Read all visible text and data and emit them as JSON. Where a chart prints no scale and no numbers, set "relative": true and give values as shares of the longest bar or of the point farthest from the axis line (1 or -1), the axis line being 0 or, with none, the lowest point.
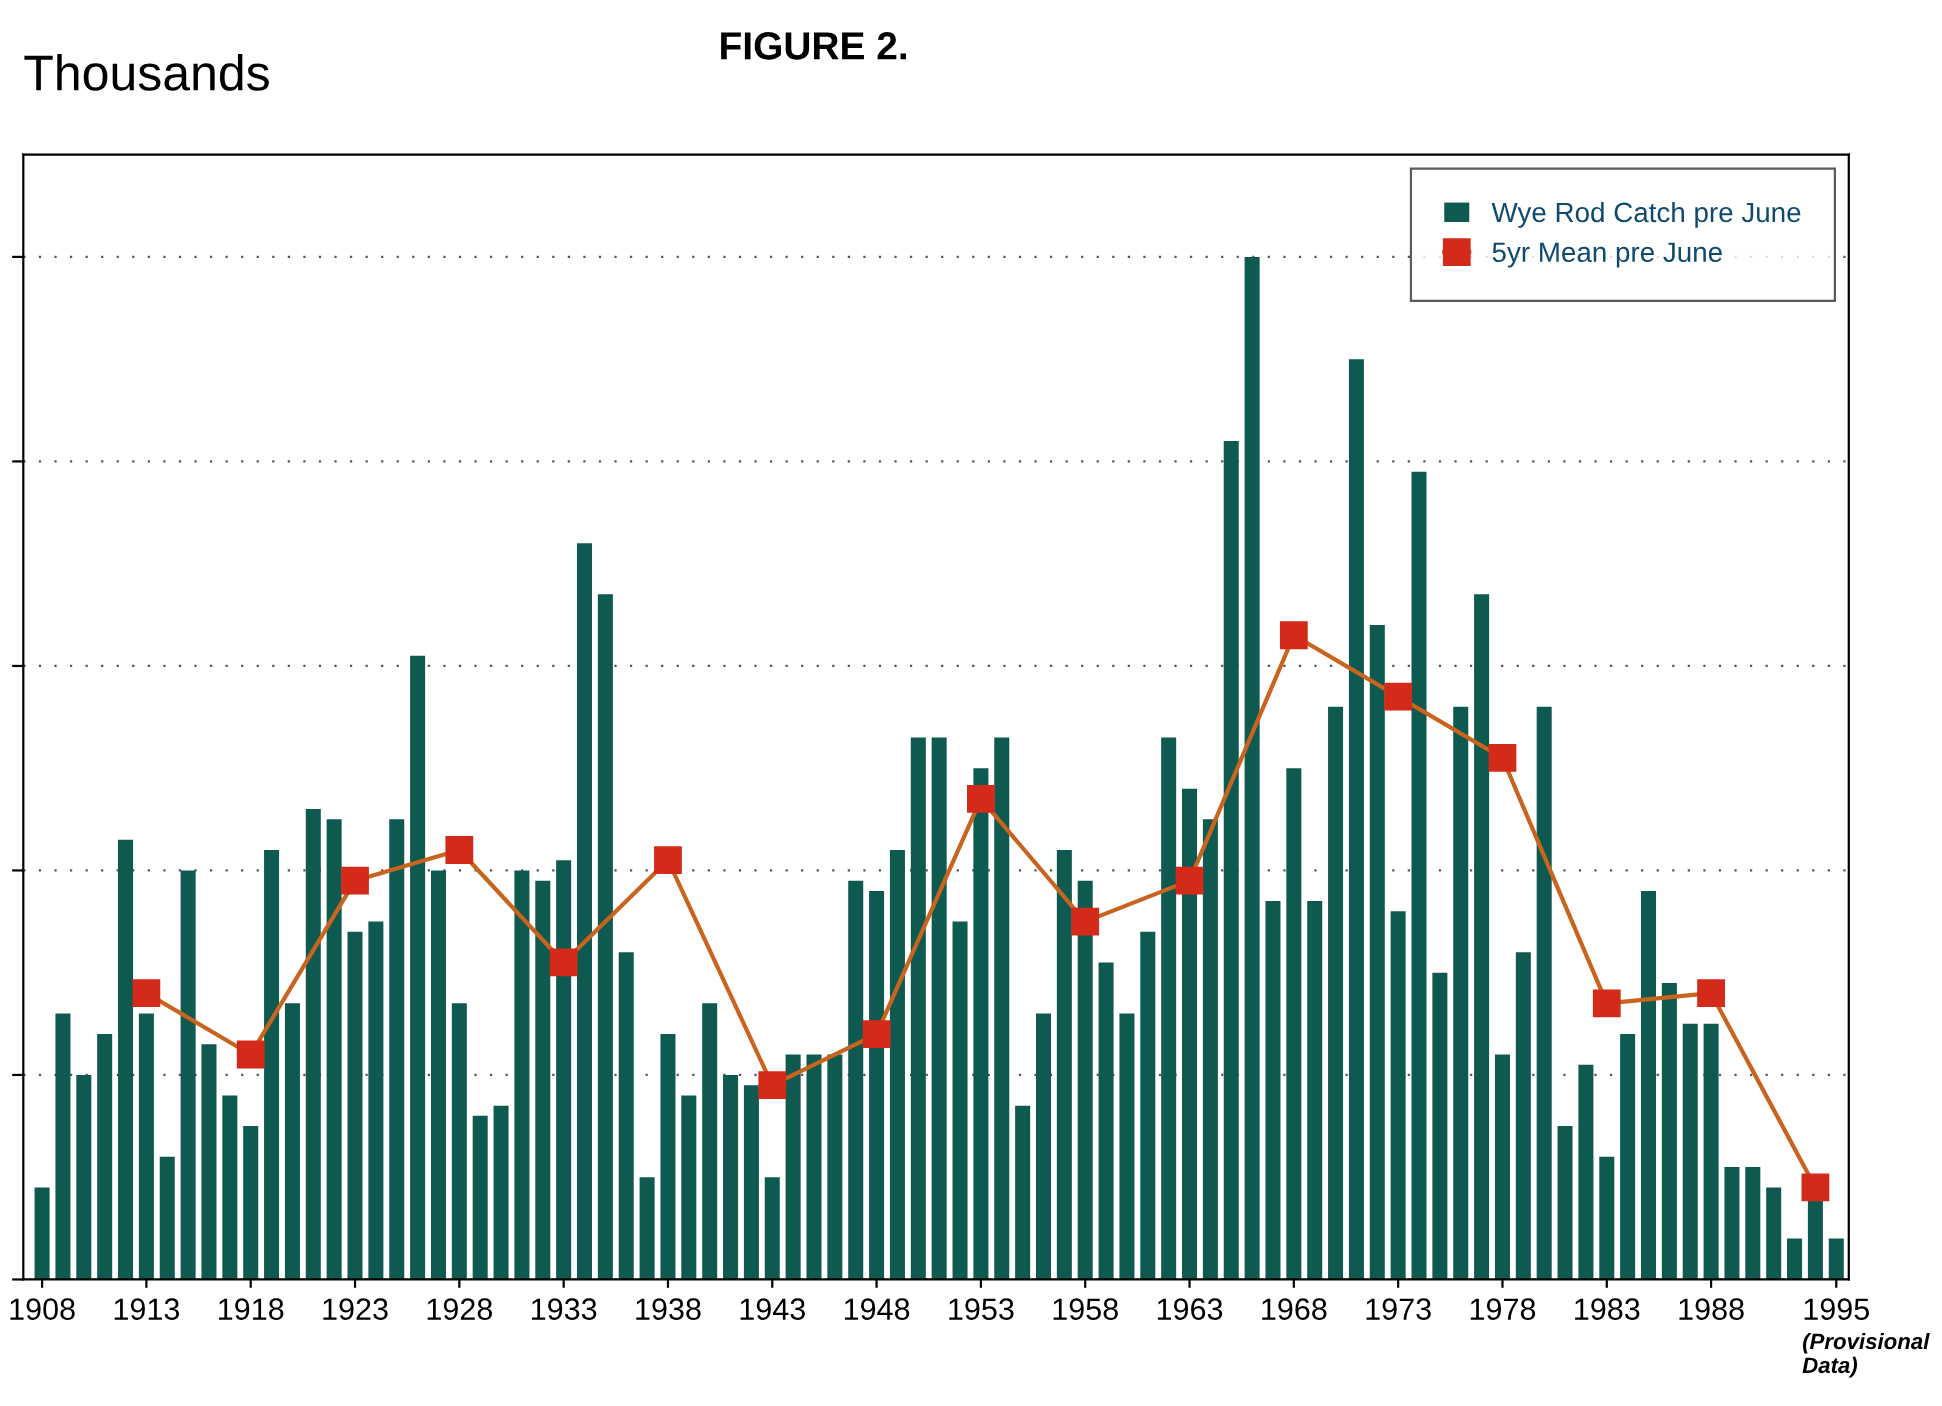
{
  "chart_data": {
    "type": "bar",
    "title": "FIGURE 2.",
    "ylabel": "Thousands",
    "relative": true,
    "grid": "y",
    "legend": "top right",
    "marker": "square",
    "line_style": "solid",
    "annotations": [
      "(Provisional Data)"
    ],
    "categories": [
      "1908",
      null,
      null,
      null,
      null,
      "1913",
      null,
      null,
      null,
      null,
      "1918",
      null,
      null,
      null,
      null,
      "1923",
      null,
      null,
      null,
      null,
      "1928",
      null,
      null,
      null,
      null,
      "1933",
      null,
      null,
      null,
      null,
      "1938",
      null,
      null,
      null,
      null,
      "1943",
      null,
      null,
      null,
      null,
      "1948",
      null,
      null,
      null,
      null,
      "1953",
      null,
      null,
      null,
      null,
      "1958",
      null,
      null,
      null,
      null,
      "1963",
      null,
      null,
      null,
      null,
      "1968",
      null,
      null,
      null,
      null,
      "1973",
      null,
      null,
      null,
      null,
      "1978",
      null,
      null,
      null,
      null,
      "1983",
      null,
      null,
      null,
      null,
      "1988",
      null,
      null,
      null,
      null,
      null,
      "1995"
    ],
    "series": [
      {
        "name": "Wye Rod Catch pre June",
        "color": "#0e5a50",
        "values": [
          0.09,
          0.26,
          0.2,
          0.24,
          0.43,
          0.26,
          0.12,
          0.4,
          0.23,
          0.18,
          0.15,
          0.42,
          0.27,
          0.46,
          0.45,
          0.34,
          0.35,
          0.45,
          0.61,
          0.4,
          0.27,
          0.16,
          0.17,
          0.4,
          0.39,
          0.41,
          0.72,
          0.67,
          0.32,
          0.1,
          0.24,
          0.18,
          0.27,
          0.2,
          0.19,
          0.1,
          0.22,
          0.22,
          0.22,
          0.39,
          0.38,
          0.42,
          0.53,
          0.53,
          0.35,
          0.5,
          0.53,
          0.17,
          0.26,
          0.42,
          0.39,
          0.31,
          0.26,
          0.34,
          0.53,
          0.48,
          0.45,
          0.82,
          1,
          0.37,
          0.5,
          0.37,
          0.56,
          0.9,
          0.64,
          0.36,
          0.79,
          0.3,
          0.56,
          0.67,
          0.22,
          0.32,
          0.56,
          0.15,
          0.21,
          0.12,
          0.24,
          0.38,
          0.29,
          0.25,
          0.25,
          0.11,
          0.11,
          0.09,
          0.04,
          0.08,
          0.04
        ]
      },
      {
        "name": "5yr Mean pre June",
        "type": "line",
        "color": "#d42a1a",
        "values": [
          null,
          null,
          null,
          null,
          null,
          0.28,
          null,
          null,
          null,
          null,
          0.22,
          null,
          null,
          null,
          null,
          0.39,
          null,
          null,
          null,
          null,
          0.42,
          null,
          null,
          null,
          null,
          0.31,
          null,
          null,
          null,
          null,
          0.41,
          null,
          null,
          null,
          null,
          0.19,
          null,
          null,
          null,
          null,
          0.24,
          null,
          null,
          null,
          null,
          0.47,
          null,
          null,
          null,
          null,
          0.35,
          null,
          null,
          null,
          null,
          0.39,
          null,
          null,
          null,
          null,
          0.63,
          null,
          null,
          null,
          null,
          0.57,
          null,
          null,
          null,
          null,
          0.51,
          null,
          null,
          null,
          null,
          0.27,
          null,
          null,
          null,
          null,
          0.28,
          null,
          null,
          null,
          null,
          0.09,
          null
        ]
      }
    ]
  }
}
